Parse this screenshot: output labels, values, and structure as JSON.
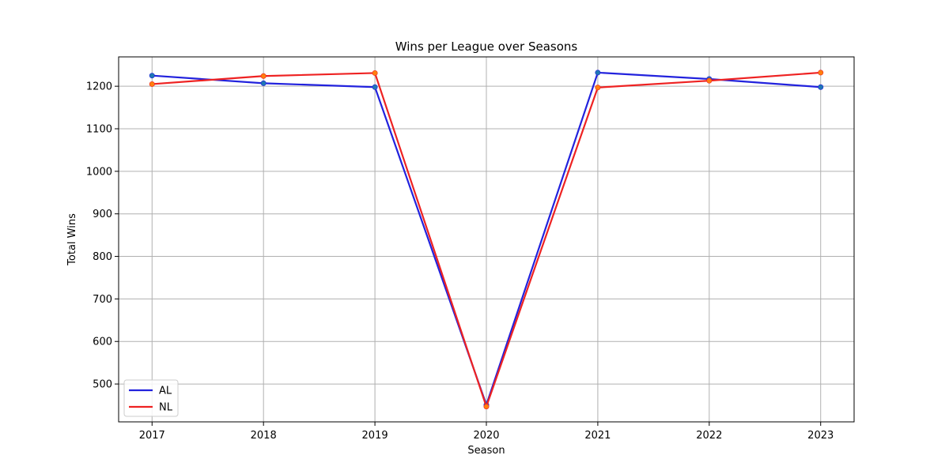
{
  "chart_data": {
    "type": "line",
    "title": "Wins per League over Seasons",
    "xlabel": "Season",
    "ylabel": "Total Wins",
    "x": [
      2017,
      2018,
      2019,
      2020,
      2021,
      2022,
      2023
    ],
    "x_tick_labels": [
      "2017",
      "2018",
      "2019",
      "2020",
      "2021",
      "2022",
      "2023"
    ],
    "xlim": [
      2016.7,
      2023.3
    ],
    "ylim": [
      411,
      1269
    ],
    "y_ticks": [
      500,
      600,
      700,
      800,
      900,
      1000,
      1100,
      1200
    ],
    "y_tick_labels": [
      "500",
      "600",
      "700",
      "800",
      "900",
      "1000",
      "1100",
      "1200"
    ],
    "grid": true,
    "legend_position": "lower-left",
    "series": [
      {
        "name": "AL",
        "color": "#2222dd",
        "marker_color": "#1f77b4",
        "values": [
          1225,
          1207,
          1198,
          451,
          1232,
          1217,
          1198
        ]
      },
      {
        "name": "NL",
        "color": "#ee2222",
        "marker_color": "#ff7f0e",
        "values": [
          1205,
          1224,
          1231,
          447,
          1197,
          1213,
          1232
        ]
      }
    ]
  }
}
